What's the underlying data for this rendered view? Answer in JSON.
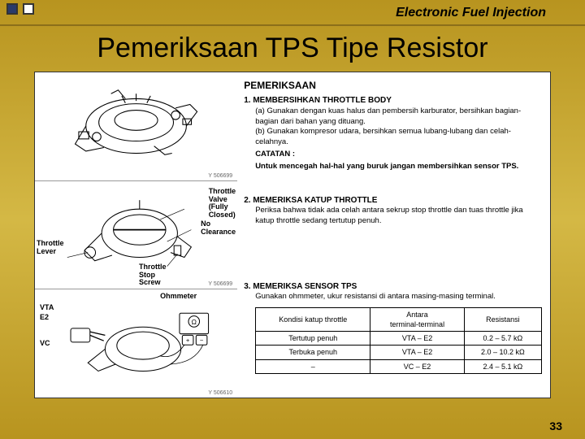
{
  "background_gradient": [
    "#b8941f",
    "#d4b845"
  ],
  "header": {
    "text": "Electronic Fuel Injection",
    "font_style": "italic",
    "font_weight": "bold",
    "font_size": 16
  },
  "title": {
    "text": "Pemeriksaan TPS Tipe Resistor",
    "font_size": 34,
    "color": "#000000"
  },
  "diagrams": {
    "box1": {
      "code": "Y 506699"
    },
    "box2": {
      "labels": {
        "throttle_lever": "Throttle\nLever",
        "throttle_valve": "Throttle\nValve\n(Fully\nClosed)",
        "no_clearance": "No\nClearance",
        "throttle_stop": "Throttle\nStop\nScrew"
      },
      "code": "Y 506699"
    },
    "box3": {
      "labels": {
        "vta": "VTA",
        "e2": "E2",
        "vc": "VC",
        "ohmmeter": "Ohmmeter"
      },
      "code": "Y 506610"
    }
  },
  "instructions": {
    "main_heading": "PEMERIKSAAN",
    "step1": {
      "num": "1.",
      "title": "MEMBERSIHKAN THROTTLE BODY",
      "a_label": "(a)",
      "a_text": "Gunakan dengan kuas halus dan pembersih karburator, bersihkan bagian-bagian dari bahan yang dituang.",
      "b_label": "(b)",
      "b_text": "Gunakan kompresor udara, bersihkan semua lubang-lubang dan celah-celahnya.",
      "note_label": "CATATAN :",
      "note_text": "Untuk mencegah hal-hal yang buruk jangan membersihkan sensor TPS."
    },
    "step2": {
      "num": "2.",
      "title": "MEMERIKSA KATUP THROTTLE",
      "text": "Periksa bahwa tidak ada celah antara sekrup stop throttle dan tuas throttle jika katup throttle sedang tertutup penuh."
    },
    "step3": {
      "num": "3.",
      "title": "MEMERIKSA SENSOR TPS",
      "text": "Gunakan ohmmeter, ukur resistansi di antara masing-masing terminal."
    },
    "table": {
      "headers": [
        "Kondisi katup throttle",
        "Antara\nterminal-terminal",
        "Resistansi"
      ],
      "rows": [
        [
          "Tertutup penuh",
          "VTA – E2",
          "0.2 – 5.7 kΩ"
        ],
        [
          "Terbuka penuh",
          "VTA – E2",
          "2.0 – 10.2 kΩ"
        ],
        [
          "–",
          "VC – E2",
          "2.4 – 5.1 kΩ"
        ]
      ]
    }
  },
  "page_number": "33"
}
